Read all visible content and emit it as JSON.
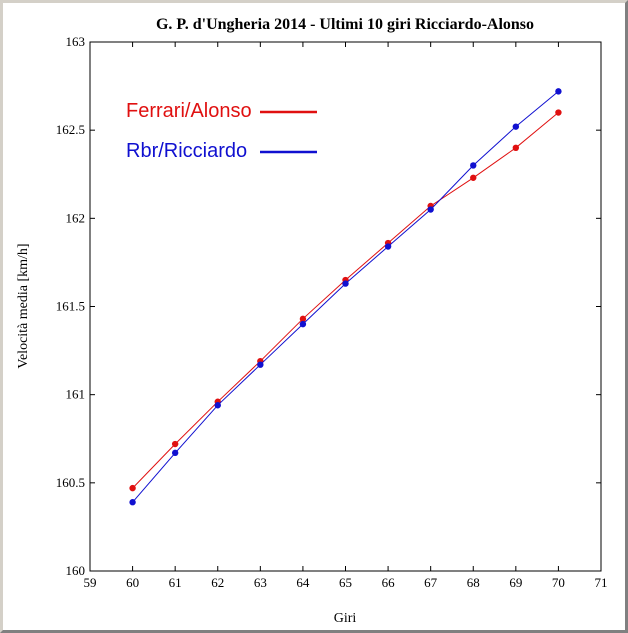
{
  "chart_data": {
    "type": "line",
    "title": "G. P. d'Ungheria 2014 - Ultimi 10 giri Ricciardo-Alonso",
    "xlabel": "Giri",
    "ylabel": "Velocità media  [km/h]",
    "xlim": [
      59,
      71
    ],
    "ylim": [
      160,
      163
    ],
    "x_ticks": [
      "59",
      "60",
      "61",
      "62",
      "63",
      "64",
      "65",
      "66",
      "67",
      "68",
      "69",
      "70",
      "71"
    ],
    "y_ticks": [
      "160",
      "160.5",
      "161",
      "161.5",
      "162",
      "162.5",
      "163"
    ],
    "grid": false,
    "legend_position": "top-left",
    "x": [
      60,
      61,
      62,
      63,
      64,
      65,
      66,
      67,
      68,
      69,
      70
    ],
    "series": [
      {
        "name": "Ferrari/Alonso",
        "color": "#e01010",
        "values": [
          160.47,
          160.72,
          160.96,
          161.19,
          161.43,
          161.65,
          161.86,
          162.07,
          162.23,
          162.4,
          162.6
        ]
      },
      {
        "name": "Rbr/Ricciardo",
        "color": "#1010d0",
        "values": [
          160.39,
          160.67,
          160.94,
          161.17,
          161.4,
          161.63,
          161.84,
          162.05,
          162.3,
          162.52,
          162.72
        ]
      }
    ]
  }
}
